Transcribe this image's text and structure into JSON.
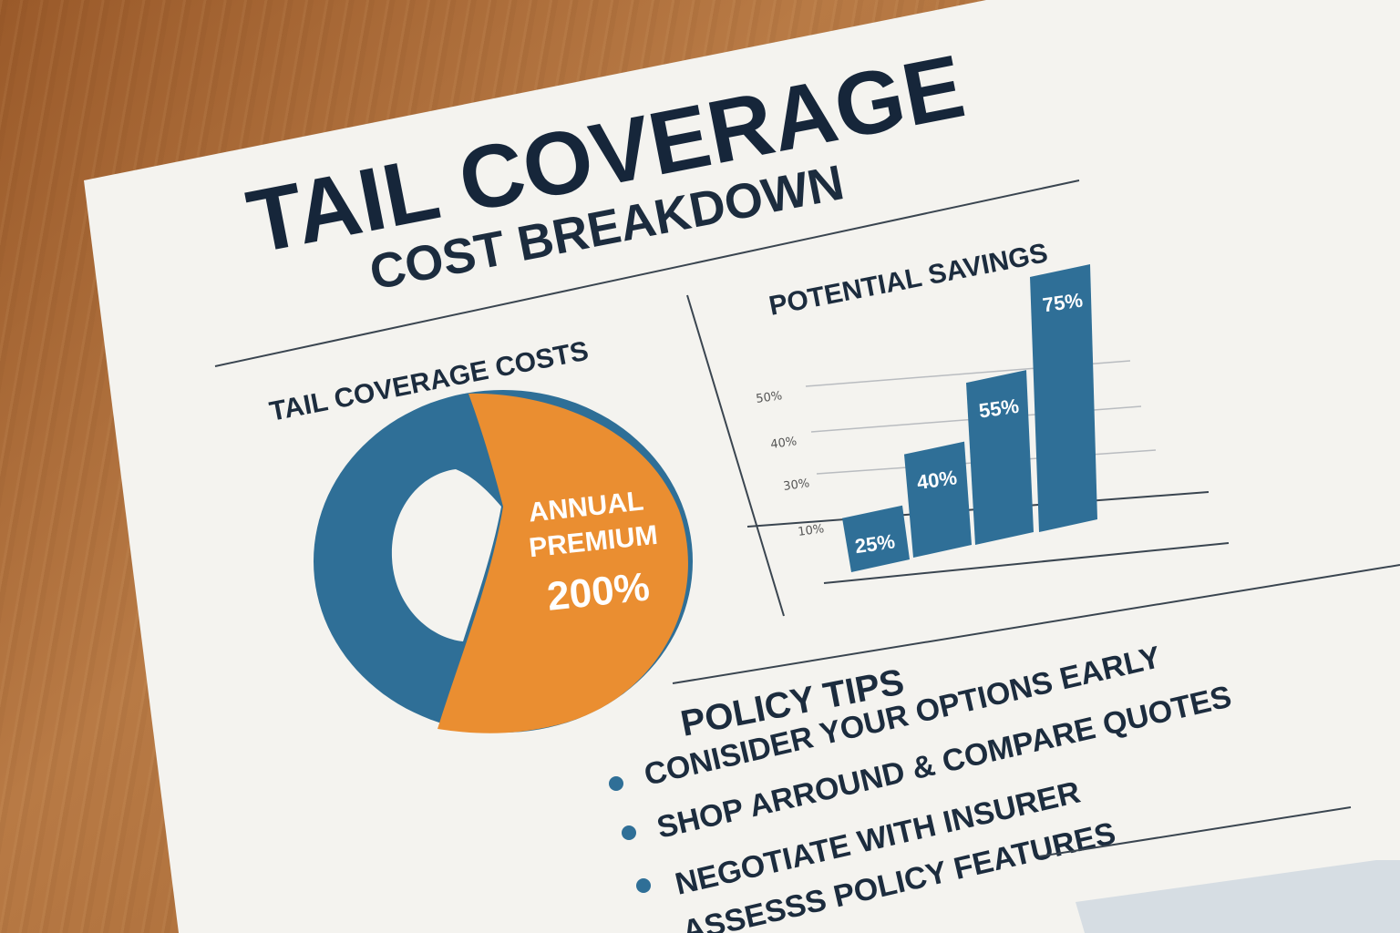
{
  "title": "TAIL COVERAGE",
  "subtitle": "COST BREAKDOWN",
  "costs_section": {
    "heading": "TAIL COVERAGE COSTS",
    "pie_label_line1": "ANNUAL",
    "pie_label_line2": "PREMIUM",
    "pie_value": "200%"
  },
  "savings_section": {
    "heading": "POTENTIAL SAVINGS"
  },
  "chart_data": {
    "type": "bar",
    "title": "POTENTIAL SAVINGS",
    "values": [
      25,
      40,
      55,
      75
    ],
    "value_labels": [
      "25%",
      "40%",
      "55%",
      "75%"
    ],
    "y_ticks": [
      "10%",
      "30%",
      "40%",
      "50%"
    ],
    "grid": true,
    "colors": {
      "bar": "#2f6f97"
    }
  },
  "pie_data": {
    "type": "pie",
    "slices": [
      {
        "label": "ANNUAL PREMIUM",
        "value": 56,
        "color": "#ea8e31"
      },
      {
        "label": "",
        "value": 44,
        "color": "#2f6f97"
      }
    ]
  },
  "tips": {
    "heading": "POLICY TIPS",
    "items": [
      "CONISIDER YOUR OPTIONS EARLY",
      "SHOP ARROUND & COMPARE QUOTES",
      "NEGOTIATE WITH INSURER",
      "ASSESSS POLICY FEATURES"
    ]
  },
  "colors": {
    "navy": "#16263a",
    "blue": "#2f6f97",
    "orange": "#ea8e31",
    "paper": "#f4f3ef"
  }
}
